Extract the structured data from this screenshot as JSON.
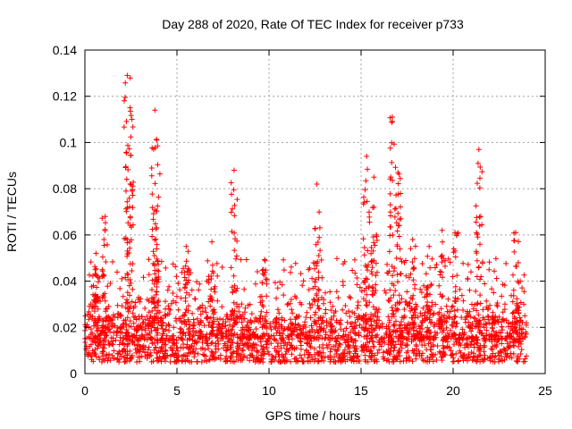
{
  "chart_data": {
    "type": "scatter",
    "title": "Day 288 of 2020, Rate Of TEC Index for receiver p733",
    "xlabel": "GPS time / hours",
    "ylabel": "ROTI / TECUs",
    "xlim": [
      0,
      25
    ],
    "ylim": [
      0,
      0.14
    ],
    "xticks": [
      0,
      5,
      10,
      15,
      20,
      25
    ],
    "yticks": [
      0,
      0.02,
      0.04,
      0.06,
      0.08,
      0.1,
      0.12,
      0.14
    ],
    "xtick_labels": [
      "0",
      "5",
      "10",
      "15",
      "20",
      "25"
    ],
    "ytick_labels": [
      "0",
      "0.02",
      "0.04",
      "0.06",
      "0.08",
      "0.1",
      "0.12",
      "0.14"
    ],
    "grid": true,
    "marker": "+",
    "marker_color": "#ff0000",
    "data_extent_hours": [
      0,
      24
    ],
    "baseline_band": [
      0.005,
      0.025
    ],
    "spikes": [
      {
        "x": 2.3,
        "y": 0.129
      },
      {
        "x": 2.45,
        "y": 0.115
      },
      {
        "x": 3.8,
        "y": 0.114
      },
      {
        "x": 3.9,
        "y": 0.101
      },
      {
        "x": 8.1,
        "y": 0.088
      },
      {
        "x": 12.6,
        "y": 0.082
      },
      {
        "x": 15.3,
        "y": 0.094
      },
      {
        "x": 15.7,
        "y": 0.085
      },
      {
        "x": 16.7,
        "y": 0.111
      },
      {
        "x": 17.0,
        "y": 0.087
      },
      {
        "x": 21.4,
        "y": 0.097
      },
      {
        "x": 23.4,
        "y": 0.061
      },
      {
        "x": 1.1,
        "y": 0.068
      },
      {
        "x": 6.9,
        "y": 0.057
      },
      {
        "x": 19.4,
        "y": 0.062
      },
      {
        "x": 20.1,
        "y": 0.061
      },
      {
        "x": 9.7,
        "y": 0.045
      },
      {
        "x": 5.5,
        "y": 0.055
      },
      {
        "x": 0.6,
        "y": 0.052
      },
      {
        "x": 17.8,
        "y": 0.058
      },
      {
        "x": 18.7,
        "y": 0.055
      }
    ]
  }
}
